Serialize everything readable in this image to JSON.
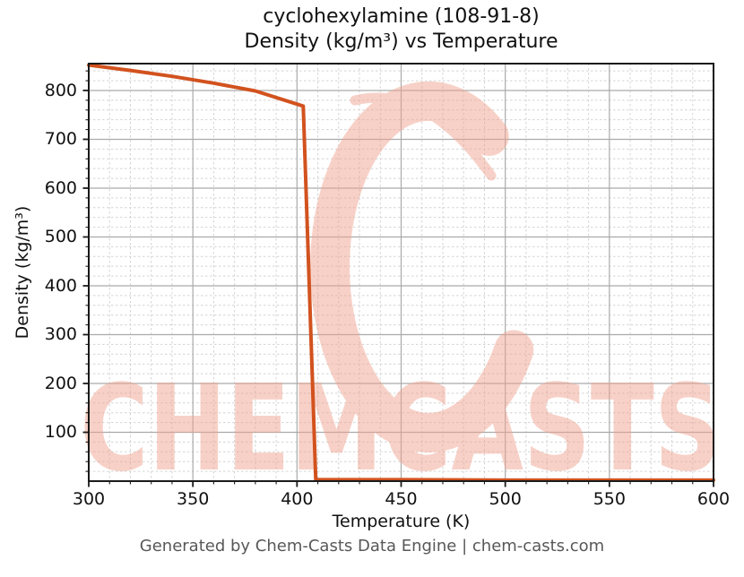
{
  "title": {
    "line1": "cyclohexylamine (108-91-8)",
    "line2": "Density (kg/m³) vs Temperature"
  },
  "axes": {
    "x": {
      "label": "Temperature (K)",
      "ticks": [
        "300",
        "350",
        "400",
        "450",
        "500",
        "550",
        "600"
      ]
    },
    "y": {
      "label": "Density (kg/m³)",
      "ticks": [
        "100",
        "200",
        "300",
        "400",
        "500",
        "600",
        "700",
        "800"
      ]
    }
  },
  "footer": {
    "text": "Generated by Chem-Casts Data Engine | chem-casts.com"
  },
  "watermark": {
    "text": "CHEMCASTS",
    "color": "#efa28e"
  },
  "colors": {
    "line": "#d2521e",
    "major_grid": "#aaaaaa",
    "minor_grid": "#d4d4d4",
    "spine": "#1a1a1a",
    "tick": "#1a1a1a",
    "title_text": "#111111",
    "footer_text": "#585858"
  },
  "chart_data": {
    "type": "line",
    "title": "cyclohexylamine (108-91-8) — Density (kg/m³) vs Temperature",
    "xlabel": "Temperature (K)",
    "ylabel": "Density (kg/m³)",
    "xlim": [
      300,
      600
    ],
    "ylim": [
      0,
      855
    ],
    "x_major_ticks": [
      300,
      350,
      400,
      450,
      500,
      550,
      600
    ],
    "y_major_ticks": [
      100,
      200,
      300,
      400,
      500,
      600,
      700,
      800
    ],
    "x_minor_step": 10,
    "y_minor_step": 20,
    "grid": "major solid + minor dashed",
    "legend": false,
    "series": [
      {
        "name": "density",
        "color": "#d2521e",
        "points": [
          [
            300,
            852
          ],
          [
            320,
            841
          ],
          [
            340,
            829
          ],
          [
            360,
            815
          ],
          [
            380,
            799
          ],
          [
            403,
            768
          ],
          [
            409,
            3
          ],
          [
            450,
            3
          ],
          [
            500,
            2
          ],
          [
            550,
            2
          ],
          [
            600,
            2
          ]
        ],
        "note": "liquid density declines from ~852 at 300 K to ~768 at ~403 K, drops to ~0 at the boiling point (~409 K), then stays ~0 (vapor) to 600 K"
      }
    ]
  }
}
